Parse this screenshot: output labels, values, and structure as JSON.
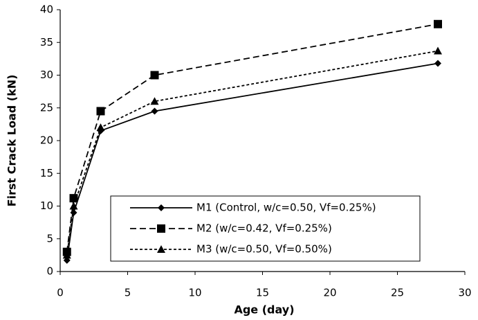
{
  "chart_data": {
    "type": "line",
    "x_label": "Age (day)",
    "y_label": "First Crack Load (kN)",
    "x": [
      0.5,
      1,
      3,
      7,
      28
    ],
    "series": [
      {
        "name": "M1 (Control, w/c=0.50, Vf=0.25%)",
        "color": "#000000",
        "line_style": "solid",
        "marker": "diamond",
        "values": [
          1.7,
          9,
          21.5,
          24.5,
          31.8
        ]
      },
      {
        "name": "M2 (w/c=0.42, Vf=0.25%)",
        "color": "#000000",
        "line_style": "dashed",
        "marker": "square",
        "values": [
          3,
          11.2,
          24.5,
          30,
          37.8
        ]
      },
      {
        "name": "M3 (w/c=0.50, Vf=0.50%)",
        "color": "#000000",
        "line_style": "dotted",
        "marker": "triangle",
        "values": [
          2.5,
          10,
          22,
          26,
          33.7
        ]
      }
    ],
    "xlim": [
      0,
      30
    ],
    "xticks": [
      0,
      5,
      10,
      15,
      20,
      25,
      30
    ],
    "ylim": [
      0,
      40
    ],
    "yticks": [
      0,
      5,
      10,
      15,
      20,
      25,
      30,
      35,
      40
    ],
    "grid": false,
    "legend_position": "lower right"
  }
}
